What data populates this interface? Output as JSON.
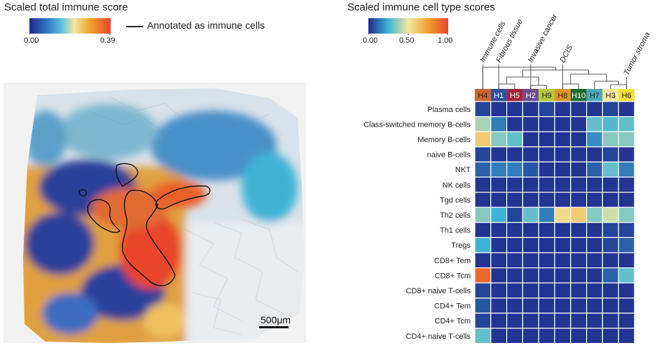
{
  "left_panel": {
    "title": "Scaled total immune score",
    "colorbar_ticks": [
      "0.00",
      "0.39"
    ],
    "legend_label": "Annotated as immune cells",
    "scalebar_label": "500μm"
  },
  "right_panel": {
    "title": "Scaled immune cell type scores",
    "colorbar_ticks": [
      "0.00",
      "0.50",
      "1.00"
    ]
  },
  "colors": {
    "heat_low": "#1f2a8a",
    "heat_mid": "#f2e8a0",
    "heat_high": "#e8452a"
  },
  "chart_data": [
    {
      "type": "image",
      "title": "Scaled total immune score",
      "colorbar_range": [
        0.0,
        0.39
      ],
      "annotations": [
        "Annotated as immune cells"
      ],
      "scalebar": "500μm"
    },
    {
      "type": "heatmap",
      "title": "Scaled immune cell type scores",
      "colorbar_range": [
        0.0,
        1.0
      ],
      "columns": [
        "H4",
        "H1",
        "H5",
        "H2",
        "H9",
        "H8",
        "H10",
        "H7",
        "H3",
        "H6"
      ],
      "column_colors": [
        "#c8692b",
        "#2f4f9e",
        "#a8233a",
        "#6a4f8a",
        "#b5c93a",
        "#e0952a",
        "#1d6b2e",
        "#4fa8b8",
        "#f2e8a0",
        "#f2e23a"
      ],
      "column_annotations": [
        {
          "label": "Immune cells",
          "column": "H4"
        },
        {
          "label": "Fibrous tissue",
          "column": "H1"
        },
        {
          "label": "Invasive cancer",
          "column": "H2"
        },
        {
          "label": "DCIS",
          "column": "H8"
        },
        {
          "label": "Tumor stroma",
          "column": "H6"
        }
      ],
      "rows": [
        "Plasma cells",
        "Class-switched memory B-cells",
        "Memory B-cells",
        "naive B-cells",
        "NKT",
        "NK cells",
        "Tgd cells",
        "Th2 cells",
        "Th1 cells",
        "Tregs",
        "CD8+ Tem",
        "CD8+ Tcm",
        "CD8+ naive T-cells",
        "CD4+ Tem",
        "CD4+ Tcm",
        "CD4+ naive T-cells"
      ],
      "values": [
        [
          0.05,
          0.02,
          0.02,
          0.02,
          0.05,
          0.02,
          0.02,
          0.02,
          0.05,
          0.02
        ],
        [
          0.4,
          0.15,
          0.02,
          0.02,
          0.02,
          0.02,
          0.02,
          0.3,
          0.28,
          0.3
        ],
        [
          0.6,
          0.35,
          0.3,
          0.02,
          0.02,
          0.02,
          0.02,
          0.18,
          0.35,
          0.35
        ],
        [
          0.05,
          0.02,
          0.02,
          0.02,
          0.02,
          0.02,
          0.02,
          0.02,
          0.05,
          0.02
        ],
        [
          0.1,
          0.15,
          0.15,
          0.08,
          0.02,
          0.02,
          0.02,
          0.1,
          0.3,
          0.15
        ],
        [
          0.02,
          0.02,
          0.02,
          0.02,
          0.02,
          0.02,
          0.02,
          0.02,
          0.02,
          0.02
        ],
        [
          0.02,
          0.02,
          0.02,
          0.02,
          0.02,
          0.02,
          0.02,
          0.02,
          0.02,
          0.02
        ],
        [
          0.35,
          0.25,
          0.05,
          0.3,
          0.15,
          0.55,
          0.6,
          0.35,
          0.45,
          0.35
        ],
        [
          0.02,
          0.02,
          0.02,
          0.02,
          0.02,
          0.02,
          0.02,
          0.02,
          0.05,
          0.05
        ],
        [
          0.25,
          0.02,
          0.02,
          0.02,
          0.02,
          0.02,
          0.02,
          0.02,
          0.05,
          0.1
        ],
        [
          0.02,
          0.02,
          0.02,
          0.02,
          0.02,
          0.02,
          0.02,
          0.02,
          0.02,
          0.02
        ],
        [
          0.9,
          0.02,
          0.02,
          0.02,
          0.02,
          0.02,
          0.02,
          0.02,
          0.1,
          0.3
        ],
        [
          0.05,
          0.02,
          0.02,
          0.02,
          0.02,
          0.02,
          0.02,
          0.02,
          0.02,
          0.02
        ],
        [
          0.08,
          0.02,
          0.02,
          0.02,
          0.02,
          0.02,
          0.02,
          0.02,
          0.02,
          0.02
        ],
        [
          0.05,
          0.02,
          0.02,
          0.02,
          0.02,
          0.02,
          0.02,
          0.02,
          0.02,
          0.02
        ],
        [
          0.3,
          0.02,
          0.02,
          0.02,
          0.02,
          0.02,
          0.02,
          0.02,
          0.02,
          0.02
        ]
      ]
    }
  ]
}
